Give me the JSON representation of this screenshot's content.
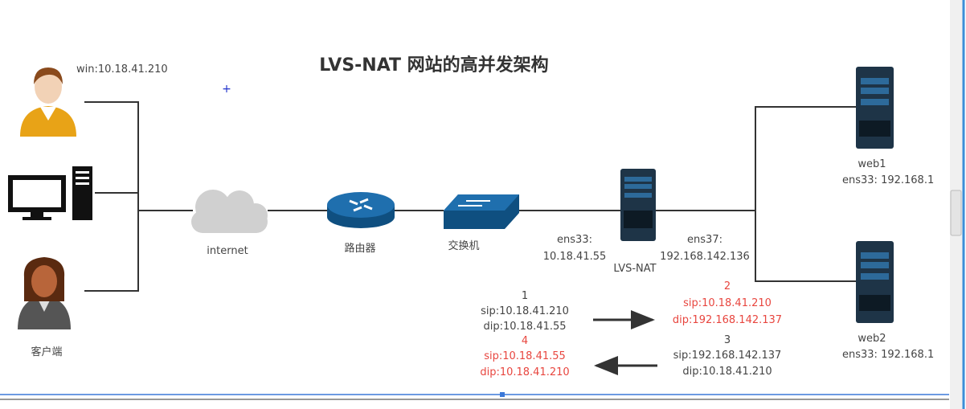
{
  "title": "LVS-NAT 网站的高并发架构",
  "client": {
    "ip_label": "win:10.18.41.210",
    "label": "客户端"
  },
  "nodes": {
    "internet": "internet",
    "router": "路由器",
    "switch": "交换机",
    "lvs": {
      "label": "LVS-NAT",
      "ens33_name": "ens33:",
      "ens33_ip": "10.18.41.55",
      "ens37_name": "ens37:",
      "ens37_ip": "192.168.142.136"
    },
    "web1": {
      "label": "web1",
      "ip": "ens33: 192.168.1"
    },
    "web2": {
      "label": "web2",
      "ip": "ens33: 192.168.1"
    }
  },
  "packets": [
    {
      "step": "1",
      "sip": "sip:10.18.41.210",
      "dip": "dip:10.18.41.55",
      "color": "#444444"
    },
    {
      "step": "2",
      "sip": "sip:10.18.41.210",
      "dip": "dip:192.168.142.137",
      "color": "#e8463f"
    },
    {
      "step": "3",
      "sip": "sip:192.168.142.137",
      "dip": "dip:10.18.41.210",
      "color": "#444444"
    },
    {
      "step": "4",
      "sip": "sip:10.18.41.55",
      "dip": "dip:10.18.41.210",
      "color": "#e8463f"
    }
  ],
  "colors": {
    "line": "#333333",
    "server": "#1e3447",
    "network_blue": "#1f6fae",
    "selection_blue": "#3b78d8"
  }
}
